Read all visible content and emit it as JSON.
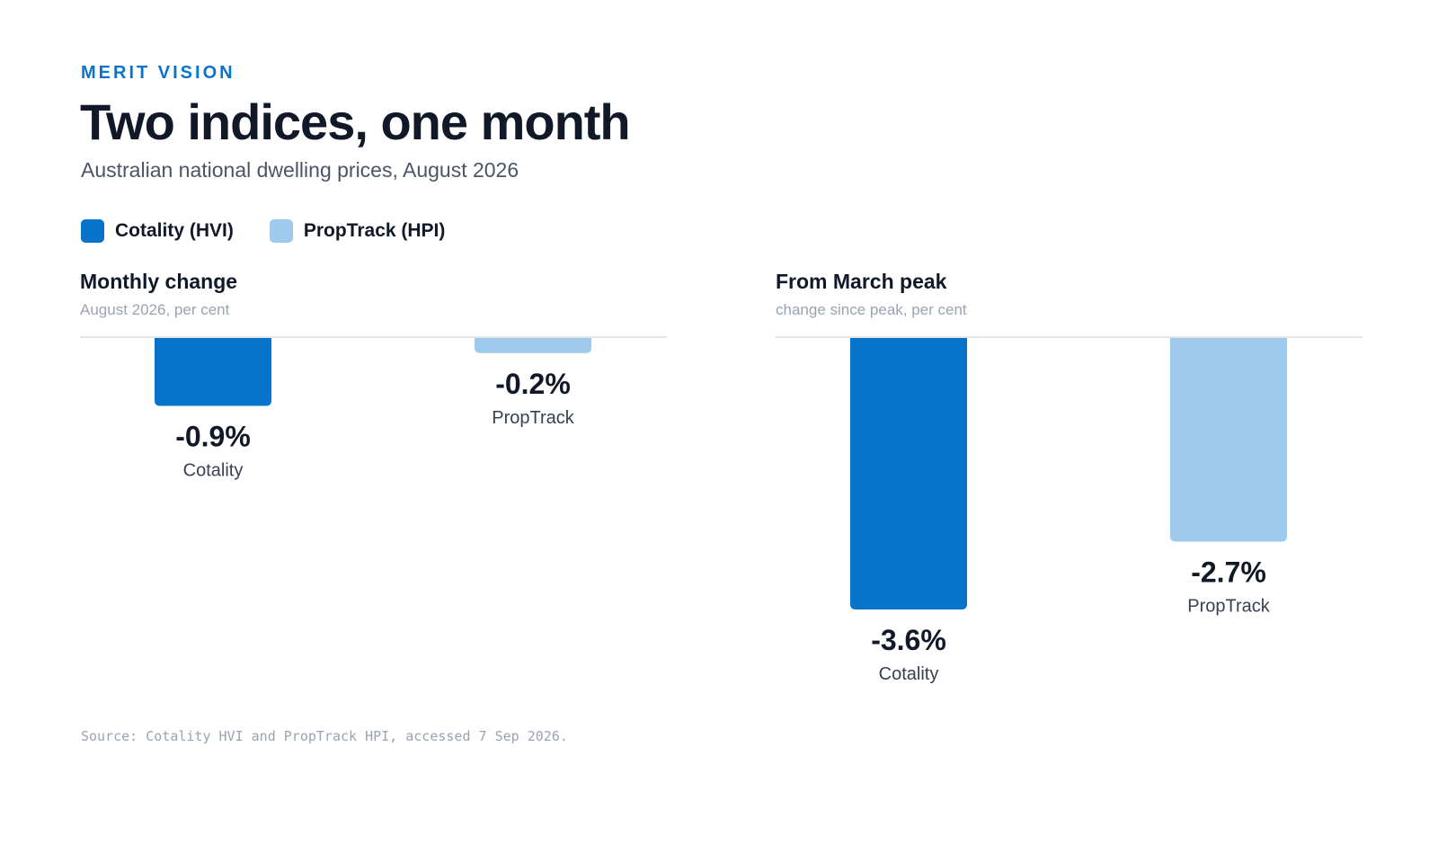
{
  "brand": "MERIT VISION",
  "title": "Two indices, one month",
  "subtitle": "Australian national dwelling prices, August 2026",
  "legend": [
    {
      "label": "Cotality (HVI)",
      "color": "#0774cc"
    },
    {
      "label": "PropTrack (HPI)",
      "color": "#9ecaee"
    }
  ],
  "source": "Source: Cotality HVI and PropTrack HPI, accessed 7 Sep 2026.",
  "chart_data": [
    {
      "type": "bar",
      "title": "Monthly change",
      "subtitle": "August 2026, per cent",
      "categories": [
        "Cotality",
        "PropTrack"
      ],
      "values": [
        -0.9,
        -0.2
      ],
      "value_labels": [
        "-0.9%",
        "-0.2%"
      ],
      "colors": [
        "#0774cc",
        "#9ecaee"
      ],
      "ylim": [
        -3.6,
        0
      ],
      "grid": false
    },
    {
      "type": "bar",
      "title": "From March peak",
      "subtitle": "change since peak, per cent",
      "categories": [
        "Cotality",
        "PropTrack"
      ],
      "values": [
        -3.6,
        -2.7
      ],
      "value_labels": [
        "-3.6%",
        "-2.7%"
      ],
      "colors": [
        "#0774cc",
        "#9ecaee"
      ],
      "ylim": [
        -3.6,
        0
      ],
      "grid": false
    }
  ]
}
